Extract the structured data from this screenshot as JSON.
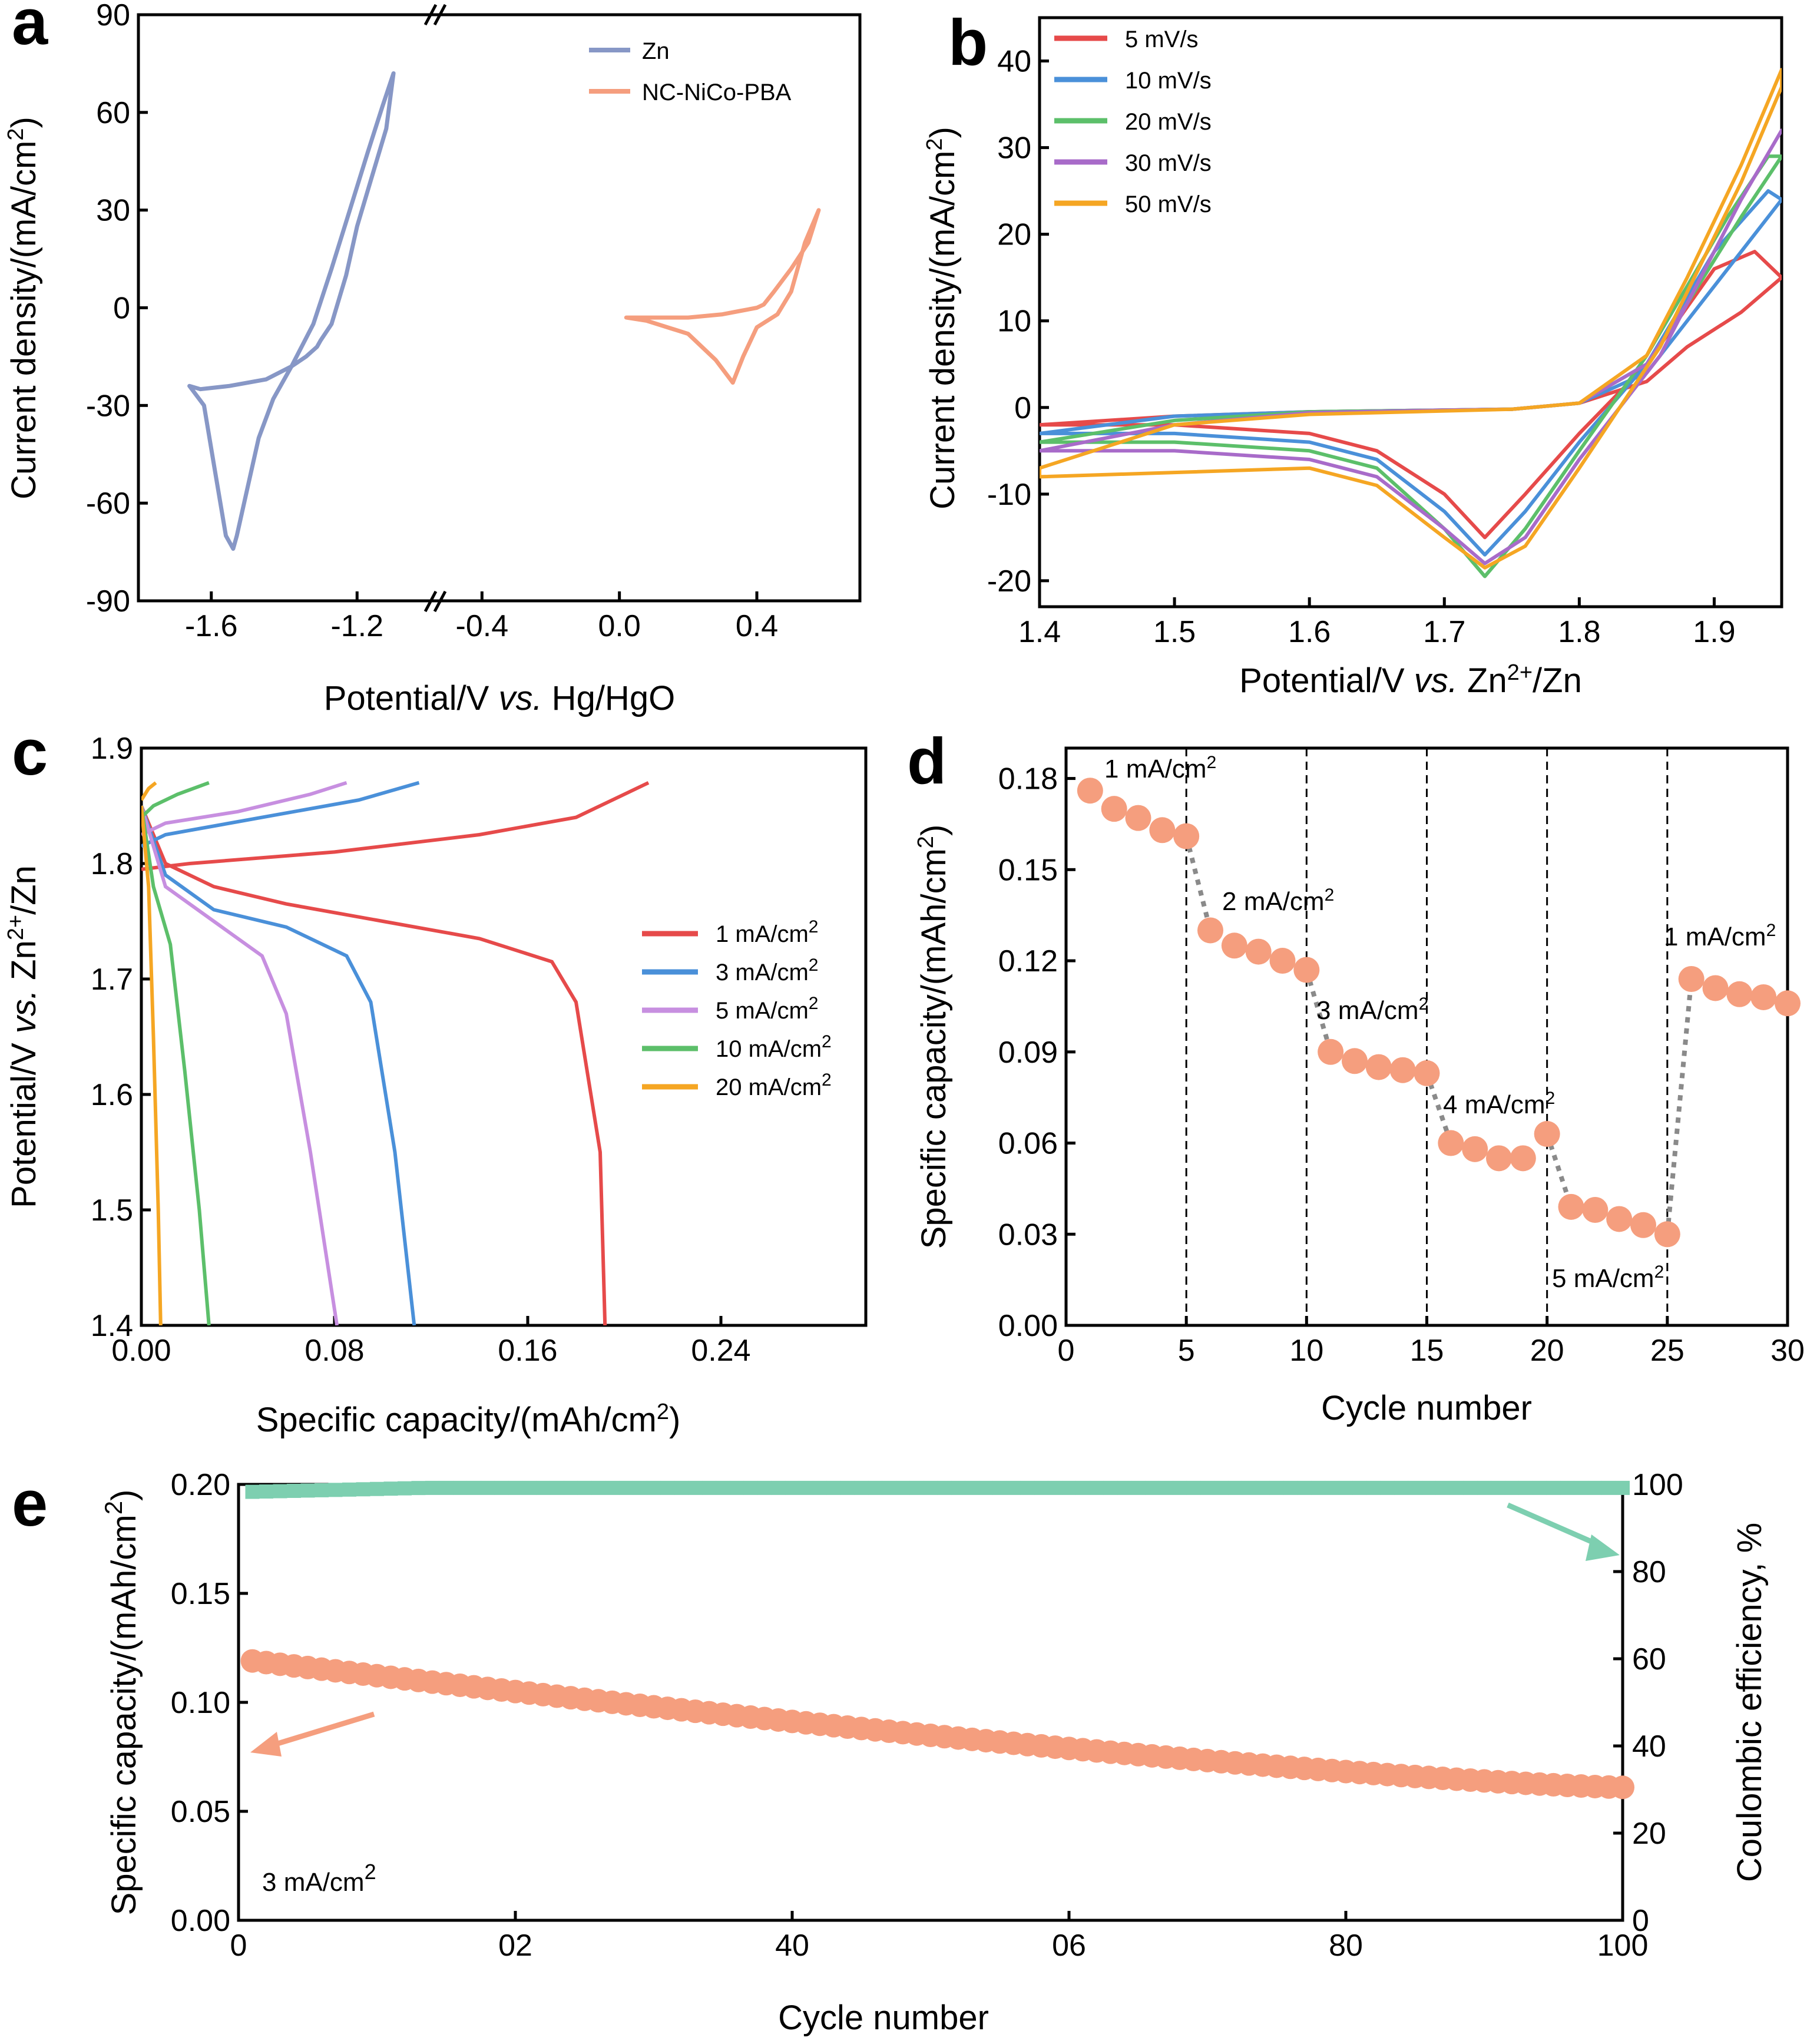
{
  "figure": {
    "panels": [
      "a",
      "b",
      "c",
      "d",
      "e"
    ]
  },
  "chart_data": [
    {
      "panel": "a",
      "type": "line",
      "title": "",
      "xlabel": "Potential/V vs. Hg/HgO",
      "ylabel": "Current density/(mA/cm2)",
      "x_ticks": [
        "-1.6",
        "-1.2",
        "-0.4",
        "0.0",
        "0.4"
      ],
      "y_ticks": [
        "90",
        "60",
        "30",
        "0",
        "-30",
        "-60",
        "-90"
      ],
      "ylim": [
        -90,
        90
      ],
      "broken_axis": "x",
      "legend": "top-right",
      "series": [
        {
          "name": "Zn",
          "color": "#8797c6",
          "x": [
            -1.1,
            -1.12,
            -1.16,
            -1.2,
            -1.23,
            -1.27,
            -1.3,
            -1.31,
            -1.34,
            -1.38,
            -1.45,
            -1.55,
            -1.63,
            -1.66,
            -1.62,
            -1.59,
            -1.56,
            -1.54,
            -1.53,
            -1.5,
            -1.47,
            -1.43,
            -1.38,
            -1.32,
            -1.27,
            -1.22,
            -1.17,
            -1.13,
            -1.1
          ],
          "y": [
            72,
            55,
            40,
            25,
            10,
            -5,
            -10,
            -12,
            -15,
            -18,
            -22,
            -24,
            -25,
            -24,
            -30,
            -50,
            -70,
            -74,
            -70,
            -55,
            -40,
            -28,
            -18,
            -5,
            12,
            30,
            48,
            62,
            72
          ]
        },
        {
          "name": "NC-NiCo-PBA",
          "color": "#f59e7e",
          "x": [
            0.58,
            0.55,
            0.5,
            0.45,
            0.42,
            0.4,
            0.35,
            0.3,
            0.2,
            0.1,
            0.02,
            0.08,
            0.2,
            0.28,
            0.33,
            0.36,
            0.4,
            0.46,
            0.5,
            0.54,
            0.58
          ],
          "y": [
            30,
            20,
            12,
            5,
            1,
            0,
            -1,
            -2,
            -3,
            -3,
            -3,
            -4,
            -8,
            -16,
            -23,
            -15,
            -6,
            -2,
            5,
            20,
            30
          ]
        }
      ]
    },
    {
      "panel": "b",
      "type": "line",
      "title": "",
      "xlabel": "Potential/V vs. Zn2+/Zn",
      "ylabel": "Current density/(mA/cm2)",
      "xlim": [
        1.4,
        1.95
      ],
      "ylim": [
        -23,
        45
      ],
      "x_ticks": [
        "1.4",
        "1.5",
        "1.6",
        "1.7",
        "1.8",
        "1.9"
      ],
      "y_ticks": [
        "40",
        "30",
        "20",
        "10",
        "0",
        "-10",
        "-20"
      ],
      "legend": "top-left",
      "series": [
        {
          "name": "5 mV/s",
          "color": "#e64a4a",
          "x": [
            1.4,
            1.5,
            1.6,
            1.7,
            1.75,
            1.8,
            1.85,
            1.88,
            1.92,
            1.95,
            1.93,
            1.9,
            1.85,
            1.8,
            1.76,
            1.73,
            1.7,
            1.65,
            1.6,
            1.5,
            1.4
          ],
          "y": [
            -2,
            -1,
            -0.5,
            -0.3,
            -0.2,
            0.5,
            3,
            7,
            11,
            15,
            18,
            16,
            5,
            -3,
            -10,
            -15,
            -10,
            -5,
            -3,
            -2,
            -2
          ]
        },
        {
          "name": "10 mV/s",
          "color": "#4a90d9",
          "x": [
            1.4,
            1.5,
            1.6,
            1.7,
            1.75,
            1.8,
            1.85,
            1.88,
            1.92,
            1.95,
            1.94,
            1.9,
            1.85,
            1.8,
            1.76,
            1.73,
            1.7,
            1.65,
            1.6,
            1.5,
            1.4
          ],
          "y": [
            -3,
            -1,
            -0.5,
            -0.3,
            -0.2,
            0.5,
            4,
            10,
            18,
            24,
            25,
            18,
            5,
            -4,
            -12,
            -17,
            -12,
            -6,
            -4,
            -3,
            -3
          ]
        },
        {
          "name": "20 mV/s",
          "color": "#5cbf6a",
          "x": [
            1.4,
            1.5,
            1.6,
            1.7,
            1.75,
            1.8,
            1.85,
            1.88,
            1.92,
            1.95,
            1.94,
            1.91,
            1.85,
            1.8,
            1.76,
            1.73,
            1.7,
            1.65,
            1.6,
            1.5,
            1.4
          ],
          "y": [
            -4,
            -1.5,
            -0.5,
            -0.3,
            -0.2,
            0.5,
            5,
            12,
            22,
            29,
            29,
            22,
            6,
            -5,
            -14,
            -19.5,
            -14,
            -7,
            -5,
            -4,
            -4
          ]
        },
        {
          "name": "30 mV/s",
          "color": "#a86bc9",
          "x": [
            1.4,
            1.5,
            1.6,
            1.7,
            1.75,
            1.8,
            1.85,
            1.88,
            1.92,
            1.95,
            1.95,
            1.92,
            1.86,
            1.8,
            1.76,
            1.73,
            1.7,
            1.65,
            1.6,
            1.5,
            1.4
          ],
          "y": [
            -5,
            -2,
            -0.6,
            -0.3,
            -0.2,
            0.5,
            5,
            12,
            24,
            32,
            32,
            24,
            6,
            -6,
            -15,
            -18,
            -14,
            -8,
            -6,
            -5,
            -5
          ]
        },
        {
          "name": "50 mV/s",
          "color": "#f5a623",
          "x": [
            1.4,
            1.5,
            1.6,
            1.7,
            1.75,
            1.8,
            1.85,
            1.88,
            1.92,
            1.95,
            1.95,
            1.92,
            1.86,
            1.8,
            1.76,
            1.73,
            1.7,
            1.65,
            1.6,
            1.5,
            1.4
          ],
          "y": [
            -7,
            -2,
            -0.8,
            -0.4,
            -0.2,
            0.5,
            6,
            15,
            28,
            39,
            37,
            26,
            7,
            -7,
            -16,
            -18.5,
            -15,
            -9,
            -7,
            -7.5,
            -8
          ]
        }
      ]
    },
    {
      "panel": "c",
      "type": "line",
      "title": "",
      "xlabel": "Specific capacity/(mAh/cm2)",
      "ylabel": "Potential/V vs. Zn2+/Zn",
      "xlim": [
        0,
        0.3
      ],
      "ylim": [
        1.4,
        1.9
      ],
      "x_ticks": [
        "0.00",
        "0.08",
        "0.16",
        "0.24"
      ],
      "y_ticks": [
        "1.9",
        "1.8",
        "1.7",
        "1.6",
        "1.5",
        "1.4"
      ],
      "legend": "center-right",
      "series": [
        {
          "name": "1 mA/cm2",
          "color": "#e64a4a",
          "charge_x": [
            0.0,
            0.02,
            0.08,
            0.14,
            0.18,
            0.2,
            0.21
          ],
          "charge_y": [
            1.795,
            1.8,
            1.81,
            1.825,
            1.84,
            1.86,
            1.87
          ],
          "discharge_x": [
            0.0,
            0.01,
            0.03,
            0.06,
            0.1,
            0.14,
            0.17,
            0.18,
            0.19,
            0.192
          ],
          "discharge_y": [
            1.85,
            1.8,
            1.78,
            1.765,
            1.75,
            1.735,
            1.715,
            1.68,
            1.55,
            1.4
          ]
        },
        {
          "name": "3 mA/cm2",
          "color": "#4a90d9",
          "charge_x": [
            0.0,
            0.01,
            0.05,
            0.09,
            0.115
          ],
          "charge_y": [
            1.815,
            1.825,
            1.84,
            1.855,
            1.87
          ],
          "discharge_x": [
            0.0,
            0.01,
            0.03,
            0.06,
            0.085,
            0.095,
            0.105,
            0.113
          ],
          "discharge_y": [
            1.85,
            1.79,
            1.76,
            1.745,
            1.72,
            1.68,
            1.55,
            1.4
          ]
        },
        {
          "name": "5 mA/cm2",
          "color": "#c78fe0",
          "charge_x": [
            0.0,
            0.01,
            0.04,
            0.07,
            0.085
          ],
          "charge_y": [
            1.825,
            1.835,
            1.845,
            1.86,
            1.87
          ],
          "discharge_x": [
            0.0,
            0.01,
            0.03,
            0.05,
            0.06,
            0.07,
            0.081
          ],
          "discharge_y": [
            1.85,
            1.78,
            1.75,
            1.72,
            1.67,
            1.55,
            1.4
          ]
        },
        {
          "name": "10 mA/cm2",
          "color": "#5cbf6a",
          "charge_x": [
            0.0,
            0.005,
            0.015,
            0.028
          ],
          "charge_y": [
            1.84,
            1.85,
            1.86,
            1.87
          ],
          "discharge_x": [
            0.0,
            0.005,
            0.012,
            0.018,
            0.024,
            0.028
          ],
          "discharge_y": [
            1.85,
            1.78,
            1.73,
            1.62,
            1.5,
            1.4
          ]
        },
        {
          "name": "20 mA/cm2",
          "color": "#f5a623",
          "charge_x": [
            0.0,
            0.003,
            0.006
          ],
          "charge_y": [
            1.855,
            1.865,
            1.87
          ],
          "discharge_x": [
            0.0,
            0.003,
            0.005,
            0.007,
            0.008
          ],
          "discharge_y": [
            1.85,
            1.78,
            1.65,
            1.5,
            1.4
          ]
        }
      ]
    },
    {
      "panel": "d",
      "type": "scatter",
      "title": "",
      "xlabel": "Cycle number",
      "ylabel": "Specific capacity/(mAh/cm2)",
      "xlim": [
        0,
        30
      ],
      "ylim": [
        0,
        0.19
      ],
      "x_ticks": [
        "0",
        "5",
        "10",
        "15",
        "20",
        "25",
        "30"
      ],
      "y_ticks": [
        "0.18",
        "0.15",
        "0.12",
        "0.09",
        "0.06",
        "0.03",
        "0.00"
      ],
      "segment_boundaries": [
        5,
        10,
        15,
        20,
        25
      ],
      "annotations": [
        "1 mA/cm2",
        "2 mA/cm2",
        "3 mA/cm2",
        "4 mA/cm2",
        "5 mA/cm2",
        "1 mA/cm2"
      ],
      "series": [
        {
          "name": "capacity",
          "color": "#f59e7e",
          "x": [
            1,
            2,
            3,
            4,
            5,
            6,
            7,
            8,
            9,
            10,
            11,
            12,
            13,
            14,
            15,
            16,
            17,
            18,
            19,
            20,
            21,
            22,
            23,
            24,
            25,
            26,
            27,
            28,
            29,
            30
          ],
          "y": [
            0.176,
            0.17,
            0.167,
            0.163,
            0.161,
            0.13,
            0.125,
            0.123,
            0.12,
            0.117,
            0.09,
            0.087,
            0.085,
            0.084,
            0.083,
            0.06,
            0.058,
            0.055,
            0.055,
            0.063,
            0.039,
            0.038,
            0.035,
            0.033,
            0.03,
            0.114,
            0.111,
            0.109,
            0.108,
            0.106
          ]
        }
      ]
    },
    {
      "panel": "e",
      "type": "scatter",
      "title": "",
      "xlabel": "Cycle number",
      "ylabel": "Specific capacity/(mAh/cm2)",
      "y2label": "Coulombic efficiency, %",
      "xlim": [
        0,
        100
      ],
      "ylim": [
        0,
        0.2
      ],
      "y2lim": [
        0,
        100
      ],
      "x_ticks": [
        "0",
        "02",
        "40",
        "06",
        "80",
        "100"
      ],
      "y_ticks": [
        "0.20",
        "0.15",
        "0.10",
        "0.05",
        "0.00"
      ],
      "y2_ticks": [
        "100",
        "80",
        "60",
        "40",
        "20",
        "0"
      ],
      "annotation": "3 mA/cm2",
      "series": [
        {
          "name": "Specific capacity",
          "color": "#f59e7e",
          "axis": "left",
          "x_start": 1,
          "x_end": 100,
          "y_start": 0.119,
          "y_end": 0.061
        },
        {
          "name": "Coulombic efficiency",
          "color": "#7dcfb0",
          "axis": "right",
          "x_start": 1,
          "x_end": 100,
          "y_start": 98.3,
          "y_end": 99.2
        }
      ]
    }
  ]
}
